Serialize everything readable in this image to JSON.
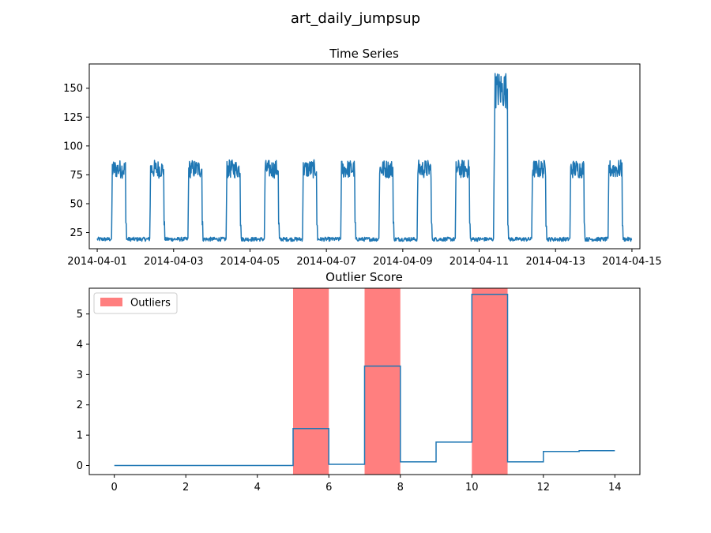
{
  "figure": {
    "suptitle": "art_daily_jumpsup"
  },
  "colors": {
    "series": "#1f77b4",
    "outlier_fill": "#ff7f7f",
    "axes": "#000000"
  },
  "chart_data": [
    {
      "type": "line",
      "title": "Time Series",
      "xlabel": "",
      "ylabel": "",
      "x_axis_type": "date",
      "xlim": [
        "2014-03-31T19:00",
        "2014-04-15T05:00"
      ],
      "ylim": [
        11,
        171
      ],
      "x_ticks": [
        "2014-04-01",
        "2014-04-03",
        "2014-04-05",
        "2014-04-07",
        "2014-04-09",
        "2014-04-11",
        "2014-04-13",
        "2014-04-15"
      ],
      "y_ticks": [
        25,
        50,
        75,
        100,
        125,
        150
      ],
      "grid": false,
      "series": [
        {
          "baseline": 20,
          "active_level": 80,
          "noise_band": [
            16,
            88
          ],
          "daily_active_window_hours": [
            9,
            18
          ],
          "start": "2014-04-01T00:00",
          "end": "2014-04-14T23:55",
          "jump_day": "2014-04-11",
          "jump_level": 155,
          "jump_noise_band": [
            132,
            165
          ]
        }
      ]
    },
    {
      "type": "line",
      "title": "Outlier Score",
      "xlabel": "",
      "ylabel": "",
      "xlim": [
        -0.7,
        14.7
      ],
      "ylim": [
        -0.3,
        5.85
      ],
      "x_ticks": [
        0,
        2,
        4,
        6,
        8,
        10,
        12,
        14
      ],
      "y_ticks": [
        0,
        1,
        2,
        3,
        4,
        5
      ],
      "grid": false,
      "legend": {
        "placement": "top-left",
        "entries": [
          "Outliers"
        ]
      },
      "step_series": {
        "segments": [
          {
            "x0": 0,
            "x1": 5,
            "y": 0.0
          },
          {
            "x0": 5,
            "x1": 6,
            "y": 1.22
          },
          {
            "x0": 6,
            "x1": 7,
            "y": 0.04
          },
          {
            "x0": 7,
            "x1": 8,
            "y": 3.28
          },
          {
            "x0": 8,
            "x1": 9,
            "y": 0.12
          },
          {
            "x0": 9,
            "x1": 10,
            "y": 0.77
          },
          {
            "x0": 10,
            "x1": 11,
            "y": 5.65
          },
          {
            "x0": 11,
            "x1": 12,
            "y": 0.12
          },
          {
            "x0": 12,
            "x1": 13,
            "y": 0.46
          },
          {
            "x0": 13,
            "x1": 14,
            "y": 0.49
          }
        ]
      },
      "outlier_spans": [
        [
          5,
          6
        ],
        [
          7,
          8
        ],
        [
          10,
          11
        ]
      ]
    }
  ]
}
